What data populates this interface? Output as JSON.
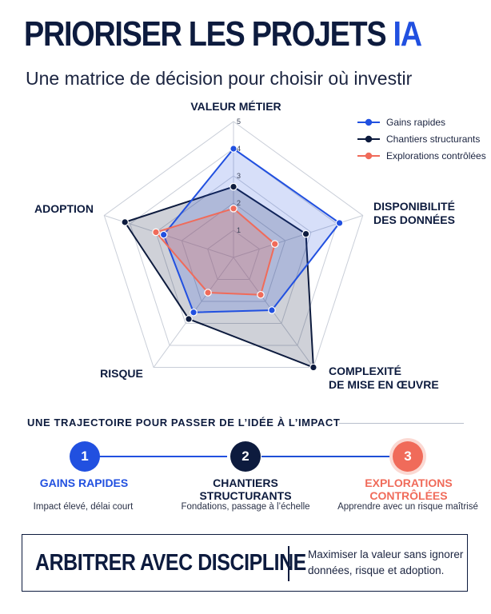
{
  "header": {
    "title_main": "PRIORISER LES PROJETS ",
    "title_accent": "IA",
    "subtitle": "Une matrice de décision pour choisir où investir"
  },
  "chart_data": {
    "type": "radar",
    "axes": [
      {
        "label_lines": [
          "VALEUR MÉTIER"
        ]
      },
      {
        "label_lines": [
          "DISPONIBILITÉ",
          "DES DONNÉES"
        ]
      },
      {
        "label_lines": [
          "COMPLEXITÉ",
          "DE MISE EN ŒUVRE"
        ]
      },
      {
        "label_lines": [
          "RISQUE"
        ]
      },
      {
        "label_lines": [
          "ADOPTION"
        ]
      }
    ],
    "range": [
      0,
      5
    ],
    "ticks": [
      "1",
      "2",
      "3",
      "4",
      "5"
    ],
    "legend_position": "top-right",
    "series": [
      {
        "name": "Gains rapides",
        "color": "#2150e0",
        "values": [
          4,
          4.1,
          2.4,
          2.5,
          2.7
        ]
      },
      {
        "name": "Chantiers structurants",
        "color": "#0d1b3e",
        "values": [
          2.6,
          2.8,
          5,
          2.8,
          4.2
        ]
      },
      {
        "name": "Explorations contrôlées",
        "color": "#f06b5a",
        "values": [
          1.8,
          1.6,
          1.7,
          1.6,
          3.0
        ]
      }
    ]
  },
  "trajectory": {
    "title": "UNE TRAJECTOIRE POUR PASSER DE L’IDÉE À L’IMPACT",
    "steps": [
      {
        "number": "1",
        "label_line1": "GAINS RAPIDES",
        "label_line2": "",
        "description": "Impact élevé, délai court",
        "color": "#2150e0"
      },
      {
        "number": "2",
        "label_line1": "CHANTIERS",
        "label_line2": "STRUCTURANTS",
        "description": "Fondations, passage à l’échelle",
        "color": "#0d1b3e"
      },
      {
        "number": "3",
        "label_line1": "EXPLORATIONS",
        "label_line2": "CONTRÔLÉES",
        "description": "Apprendre avec un risque maîtrisé",
        "color": "#f06b5a"
      }
    ]
  },
  "footer": {
    "title": "ARBITRER AVEC DISCIPLINE",
    "text_line1": "Maximiser la valeur sans ignorer",
    "text_line2": "données, risque et adoption."
  }
}
